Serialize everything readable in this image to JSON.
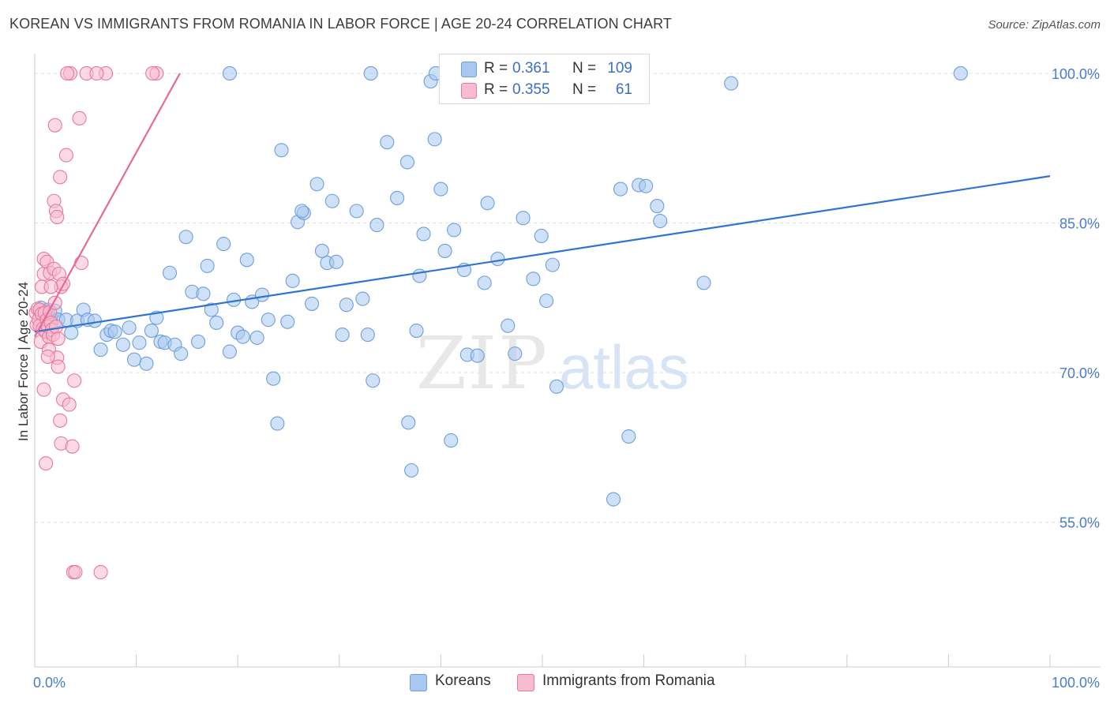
{
  "header": {
    "title": "KOREAN VS IMMIGRANTS FROM ROMANIA IN LABOR FORCE | AGE 20-24 CORRELATION CHART",
    "source": "Source: ZipAtlas.com"
  },
  "watermark": {
    "zip": "ZIP",
    "atlas": "atlas"
  },
  "legend": {
    "rows": [
      {
        "r_label": "R =",
        "r_value": "0.361",
        "n_label": "N =",
        "n_value": "109",
        "color": "#a8c8f0"
      },
      {
        "r_label": "R =",
        "r_value": "0.355",
        "n_label": "N =",
        "n_value": "61",
        "color": "#f5b8cc"
      }
    ]
  },
  "colors": {
    "blue_fill": "#a8c8f0",
    "blue_stroke": "#6d9fdc",
    "blue_line": "#2f74d0",
    "pink_fill": "#f7bcd0",
    "pink_stroke": "#e8789e",
    "pink_line": "#e56a94",
    "tick_label": "#4a7cc9",
    "grid": "#dedede",
    "axis": "#cccccc"
  },
  "chart_data": {
    "type": "scatter",
    "title": "KOREAN VS IMMIGRANTS FROM ROMANIA IN LABOR FORCE | AGE 20-24 CORRELATION CHART",
    "xlabel": "",
    "ylabel": "In Labor Force | Age 20-24",
    "xlim": [
      0,
      100
    ],
    "ylim": [
      40.5,
      101.5
    ],
    "x_tick_labels": [
      "0.0%",
      "100.0%"
    ],
    "y_ticks": [
      55,
      70,
      85,
      100
    ],
    "y_tick_labels": [
      "55.0%",
      "70.0%",
      "85.0%",
      "100.0%"
    ],
    "grid": true,
    "legend_position": "bottom",
    "series": [
      {
        "name": "Koreans",
        "r": 0.361,
        "n": 109,
        "trend": {
          "x": [
            0,
            100
          ],
          "y": [
            74.1,
            89.7
          ]
        },
        "points": [
          [
            0.6,
            76.5
          ],
          [
            1.0,
            75.8
          ],
          [
            1.3,
            76.3
          ],
          [
            1.6,
            75.5
          ],
          [
            2.0,
            76.2
          ],
          [
            2.3,
            75.3
          ],
          [
            3.1,
            75.3
          ],
          [
            3.6,
            74.0
          ],
          [
            4.2,
            75.2
          ],
          [
            4.8,
            76.3
          ],
          [
            5.2,
            75.3
          ],
          [
            5.9,
            75.2
          ],
          [
            6.5,
            72.3
          ],
          [
            7.1,
            73.8
          ],
          [
            7.5,
            74.2
          ],
          [
            7.9,
            74.1
          ],
          [
            8.7,
            72.8
          ],
          [
            9.3,
            74.5
          ],
          [
            9.8,
            71.3
          ],
          [
            10.3,
            73.0
          ],
          [
            11.0,
            70.9
          ],
          [
            11.5,
            74.2
          ],
          [
            12.0,
            75.5
          ],
          [
            12.4,
            73.1
          ],
          [
            12.8,
            73.0
          ],
          [
            13.3,
            80.0
          ],
          [
            13.8,
            72.8
          ],
          [
            14.4,
            71.9
          ],
          [
            14.9,
            83.6
          ],
          [
            15.5,
            78.1
          ],
          [
            16.1,
            73.1
          ],
          [
            16.6,
            77.9
          ],
          [
            17.0,
            80.7
          ],
          [
            17.4,
            76.3
          ],
          [
            17.9,
            75.0
          ],
          [
            18.6,
            82.9
          ],
          [
            19.2,
            72.1
          ],
          [
            19.6,
            77.3
          ],
          [
            20.0,
            74.0
          ],
          [
            20.5,
            73.6
          ],
          [
            20.9,
            81.3
          ],
          [
            21.4,
            77.1
          ],
          [
            21.9,
            73.5
          ],
          [
            22.4,
            77.8
          ],
          [
            23.0,
            75.3
          ],
          [
            23.5,
            69.4
          ],
          [
            23.9,
            64.9
          ],
          [
            24.3,
            92.3
          ],
          [
            24.9,
            75.1
          ],
          [
            25.4,
            79.2
          ],
          [
            25.9,
            85.1
          ],
          [
            26.5,
            86.0
          ],
          [
            26.3,
            86.2
          ],
          [
            27.3,
            76.9
          ],
          [
            27.8,
            88.9
          ],
          [
            28.3,
            82.2
          ],
          [
            28.8,
            81.0
          ],
          [
            29.3,
            87.2
          ],
          [
            29.7,
            81.1
          ],
          [
            30.3,
            73.8
          ],
          [
            30.7,
            76.8
          ],
          [
            31.7,
            86.2
          ],
          [
            32.3,
            77.4
          ],
          [
            32.8,
            73.8
          ],
          [
            33.3,
            69.2
          ],
          [
            33.7,
            84.8
          ],
          [
            34.7,
            93.1
          ],
          [
            35.7,
            87.5
          ],
          [
            36.7,
            91.1
          ],
          [
            37.6,
            74.2
          ],
          [
            37.9,
            79.7
          ],
          [
            38.3,
            83.9
          ],
          [
            39.0,
            99.2
          ],
          [
            39.4,
            93.4
          ],
          [
            40.0,
            88.4
          ],
          [
            40.4,
            82.2
          ],
          [
            41.0,
            63.2
          ],
          [
            41.3,
            84.3
          ],
          [
            42.3,
            80.3
          ],
          [
            42.6,
            71.8
          ],
          [
            43.6,
            71.7
          ],
          [
            44.3,
            79.0
          ],
          [
            44.6,
            87.0
          ],
          [
            45.6,
            81.4
          ],
          [
            46.6,
            74.7
          ],
          [
            47.3,
            71.9
          ],
          [
            48.1,
            85.5
          ],
          [
            49.1,
            79.4
          ],
          [
            49.9,
            83.7
          ],
          [
            50.4,
            77.2
          ],
          [
            51.0,
            80.8
          ],
          [
            51.4,
            68.6
          ],
          [
            57.7,
            88.4
          ],
          [
            58.5,
            63.6
          ],
          [
            59.5,
            88.8
          ],
          [
            60.2,
            88.7
          ],
          [
            61.3,
            86.7
          ],
          [
            61.6,
            85.2
          ],
          [
            65.9,
            79.0
          ],
          [
            68.6,
            99.0
          ],
          [
            57.0,
            57.3
          ],
          [
            37.1,
            60.2
          ],
          [
            36.8,
            65.0
          ],
          [
            33.1,
            100.0
          ],
          [
            39.5,
            100.0
          ],
          [
            46.7,
            100.0
          ],
          [
            91.2,
            100.0
          ],
          [
            19.2,
            100.0
          ]
        ]
      },
      {
        "name": "Immigrants from Romania",
        "r": 0.355,
        "n": 61,
        "trend": {
          "x": [
            0.0,
            14.3
          ],
          "y": [
            73.6,
            100.0
          ]
        },
        "points": [
          [
            0.1,
            76.0
          ],
          [
            0.2,
            74.8
          ],
          [
            0.3,
            76.4
          ],
          [
            0.4,
            75.3
          ],
          [
            0.5,
            74.7
          ],
          [
            0.5,
            76.3
          ],
          [
            0.6,
            73.1
          ],
          [
            0.7,
            75.9
          ],
          [
            0.8,
            74.4
          ],
          [
            0.9,
            79.9
          ],
          [
            1.0,
            76.0
          ],
          [
            1.1,
            74.1
          ],
          [
            1.2,
            75.3
          ],
          [
            1.3,
            74.6
          ],
          [
            1.4,
            73.6
          ],
          [
            1.5,
            76.1
          ],
          [
            1.6,
            75.0
          ],
          [
            1.7,
            74.3
          ],
          [
            1.8,
            73.8
          ],
          [
            2.0,
            77.0
          ],
          [
            2.1,
            74.6
          ],
          [
            2.3,
            73.4
          ],
          [
            0.9,
            81.4
          ],
          [
            1.2,
            81.1
          ],
          [
            1.5,
            80.0
          ],
          [
            1.9,
            80.4
          ],
          [
            2.4,
            79.9
          ],
          [
            2.6,
            78.6
          ],
          [
            2.8,
            78.9
          ],
          [
            0.7,
            78.6
          ],
          [
            1.6,
            78.6
          ],
          [
            1.4,
            72.3
          ],
          [
            2.2,
            71.5
          ],
          [
            1.3,
            71.6
          ],
          [
            2.3,
            70.6
          ],
          [
            0.9,
            68.3
          ],
          [
            2.8,
            67.3
          ],
          [
            3.4,
            66.8
          ],
          [
            3.9,
            69.2
          ],
          [
            2.5,
            65.2
          ],
          [
            2.6,
            62.9
          ],
          [
            3.7,
            62.6
          ],
          [
            1.1,
            60.9
          ],
          [
            3.8,
            50.0
          ],
          [
            4.0,
            50.0
          ],
          [
            6.5,
            50.0
          ],
          [
            2.0,
            94.8
          ],
          [
            3.1,
            91.8
          ],
          [
            2.5,
            89.6
          ],
          [
            1.9,
            87.2
          ],
          [
            2.1,
            86.2
          ],
          [
            2.2,
            85.6
          ],
          [
            4.6,
            81.0
          ],
          [
            4.4,
            95.5
          ],
          [
            3.5,
            100.0
          ],
          [
            5.1,
            100.0
          ],
          [
            7.0,
            100.0
          ],
          [
            6.1,
            100.0
          ],
          [
            12.0,
            100.0
          ],
          [
            11.6,
            100.0
          ],
          [
            3.2,
            100.0
          ]
        ]
      }
    ]
  },
  "bottom_legend": {
    "items": [
      {
        "label": "Koreans"
      },
      {
        "label": "Immigrants from Romania"
      }
    ]
  }
}
